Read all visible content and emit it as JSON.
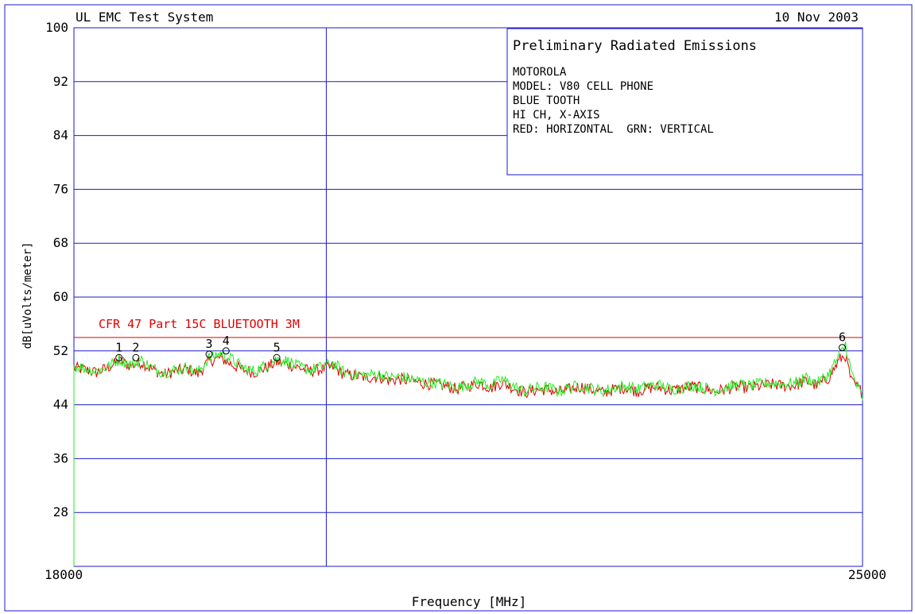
{
  "header": {
    "system_title": "UL EMC Test System",
    "date": "10 Nov 2003"
  },
  "info_box": {
    "title": "Preliminary Radiated Emissions",
    "lines": [
      "MOTOROLA",
      "MODEL: V80 CELL PHONE",
      "BLUE TOOTH",
      "HI CH, X-AXIS",
      "RED: HORIZONTAL  GRN: VERTICAL"
    ]
  },
  "colors": {
    "frame": "#1a1acc",
    "horizontal_trace": "#e00000",
    "vertical_trace": "#22ee22",
    "limit_line": "#e00000",
    "text": "#000000"
  },
  "chart_data": {
    "type": "line",
    "xlabel": "Frequency [MHz]",
    "ylabel": "dB[uVolts/meter]",
    "xlim": [
      18000,
      25000
    ],
    "ylim": [
      20,
      100
    ],
    "x_tick_labels": [
      "18000",
      "25000"
    ],
    "y_ticks": [
      28,
      36,
      44,
      52,
      60,
      68,
      76,
      84,
      92,
      100
    ],
    "grid": true,
    "limit_line": {
      "label": "CFR 47 Part 15C BLUETOOTH 3M",
      "value": 54
    },
    "markers": [
      {
        "label": "1",
        "x": 18400,
        "y": 51
      },
      {
        "label": "2",
        "x": 18550,
        "y": 51
      },
      {
        "label": "3",
        "x": 19200,
        "y": 51.5
      },
      {
        "label": "4",
        "x": 19350,
        "y": 52
      },
      {
        "label": "5",
        "x": 19800,
        "y": 51
      },
      {
        "label": "6",
        "x": 24820,
        "y": 52.5
      }
    ],
    "series": [
      {
        "name": "RED: HORIZONTAL",
        "color": "#e00000",
        "x": [
          18000,
          18100,
          18200,
          18300,
          18400,
          18500,
          18600,
          18700,
          18800,
          18900,
          19000,
          19100,
          19200,
          19300,
          19400,
          19500,
          19600,
          19700,
          19800,
          19900,
          20000,
          20100,
          20200,
          20300,
          20400,
          20500,
          20600,
          20700,
          20800,
          20900,
          21000,
          21100,
          21200,
          21300,
          21400,
          21500,
          21600,
          21700,
          21800,
          21900,
          22000,
          22100,
          22200,
          22300,
          22400,
          22500,
          22600,
          22700,
          22800,
          22900,
          23000,
          23100,
          23200,
          23300,
          23400,
          23500,
          23600,
          23700,
          23800,
          23900,
          24000,
          24100,
          24200,
          24300,
          24400,
          24500,
          24600,
          24700,
          24800,
          24850,
          24900,
          25000
        ],
        "y": [
          49.5,
          49.2,
          48.8,
          49.5,
          50.5,
          49.8,
          50.3,
          49.2,
          48.5,
          49.0,
          49.3,
          48.6,
          50.5,
          51.0,
          50.0,
          49.2,
          48.8,
          49.5,
          50.3,
          50.0,
          49.5,
          49.0,
          49.3,
          49.6,
          48.5,
          48.3,
          48.0,
          48.2,
          47.6,
          47.8,
          47.5,
          47.2,
          47.0,
          46.8,
          46.3,
          46.8,
          47.2,
          46.5,
          47.3,
          46.5,
          45.8,
          46.2,
          46.3,
          45.8,
          46.3,
          46.7,
          46.2,
          45.8,
          46.3,
          46.6,
          46.0,
          46.5,
          46.6,
          46.1,
          46.4,
          46.7,
          46.3,
          46.0,
          46.4,
          46.7,
          46.5,
          46.8,
          47.0,
          46.8,
          46.9,
          47.5,
          46.8,
          48.0,
          50.8,
          51.3,
          47.5,
          45.8
        ]
      },
      {
        "name": "GRN: VERTICAL",
        "color": "#22ee22",
        "x": [
          18000,
          18100,
          18200,
          18300,
          18400,
          18500,
          18600,
          18700,
          18800,
          18900,
          19000,
          19100,
          19200,
          19300,
          19400,
          19500,
          19600,
          19700,
          19800,
          19900,
          20000,
          20100,
          20200,
          20300,
          20400,
          20500,
          20600,
          20700,
          20800,
          20900,
          21000,
          21100,
          21200,
          21300,
          21400,
          21500,
          21600,
          21700,
          21800,
          21900,
          22000,
          22100,
          22200,
          22300,
          22400,
          22500,
          22600,
          22700,
          22800,
          22900,
          23000,
          23100,
          23200,
          23300,
          23400,
          23500,
          23600,
          23700,
          23800,
          23900,
          24000,
          24100,
          24200,
          24300,
          24400,
          24500,
          24600,
          24700,
          24800,
          24850,
          24900,
          25000
        ],
        "y": [
          49.8,
          49.4,
          49.0,
          49.6,
          50.8,
          50.0,
          50.6,
          49.4,
          48.8,
          49.2,
          49.5,
          48.8,
          51.0,
          51.6,
          50.8,
          49.5,
          49.0,
          49.8,
          50.8,
          50.5,
          49.6,
          49.2,
          49.6,
          50.2,
          48.8,
          48.5,
          48.4,
          48.6,
          48.0,
          48.2,
          47.8,
          47.4,
          47.3,
          47.0,
          46.6,
          47.0,
          47.5,
          46.8,
          47.8,
          46.8,
          46.0,
          46.5,
          46.6,
          46.0,
          46.5,
          46.9,
          46.4,
          46.0,
          46.6,
          46.8,
          46.3,
          46.8,
          46.9,
          46.3,
          46.6,
          46.9,
          46.5,
          46.2,
          46.6,
          47.0,
          46.8,
          47.1,
          47.3,
          47.1,
          47.2,
          48.0,
          47.2,
          48.6,
          51.5,
          53.0,
          48.8,
          45.0
        ]
      }
    ]
  }
}
